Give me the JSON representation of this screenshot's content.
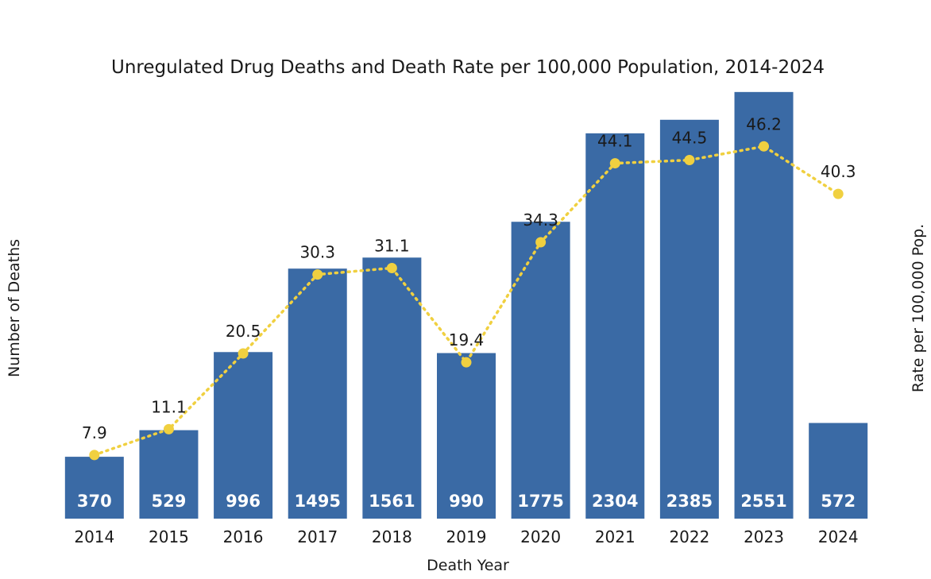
{
  "chart_data": {
    "type": "bar",
    "title": "Unregulated Drug Deaths and Death Rate per 100,000 Population, 2014-2024",
    "xlabel": "Death Year",
    "ylabel": "Number of Deaths",
    "y2label": "Rate per 100,000 Pop.",
    "categories": [
      "2014",
      "2015",
      "2016",
      "2017",
      "2018",
      "2019",
      "2020",
      "2021",
      "2022",
      "2023",
      "2024"
    ],
    "series": [
      {
        "name": "Number of Deaths",
        "type": "bar",
        "values": [
          370,
          529,
          996,
          1495,
          1561,
          990,
          1775,
          2304,
          2385,
          2551,
          572
        ]
      },
      {
        "name": "Rate per 100,000 Pop.",
        "type": "line",
        "style": "dotted",
        "axis": "secondary",
        "values": [
          7.9,
          11.1,
          20.5,
          30.3,
          31.1,
          19.4,
          34.3,
          44.1,
          44.5,
          46.2,
          40.3
        ]
      }
    ],
    "ylim": [
      0,
      2650
    ],
    "y2lim": [
      0,
      55
    ],
    "grid": false,
    "colors": {
      "bars": "#3a6aa5",
      "line": "#f0d040",
      "bar_label": "#ffffff"
    }
  }
}
